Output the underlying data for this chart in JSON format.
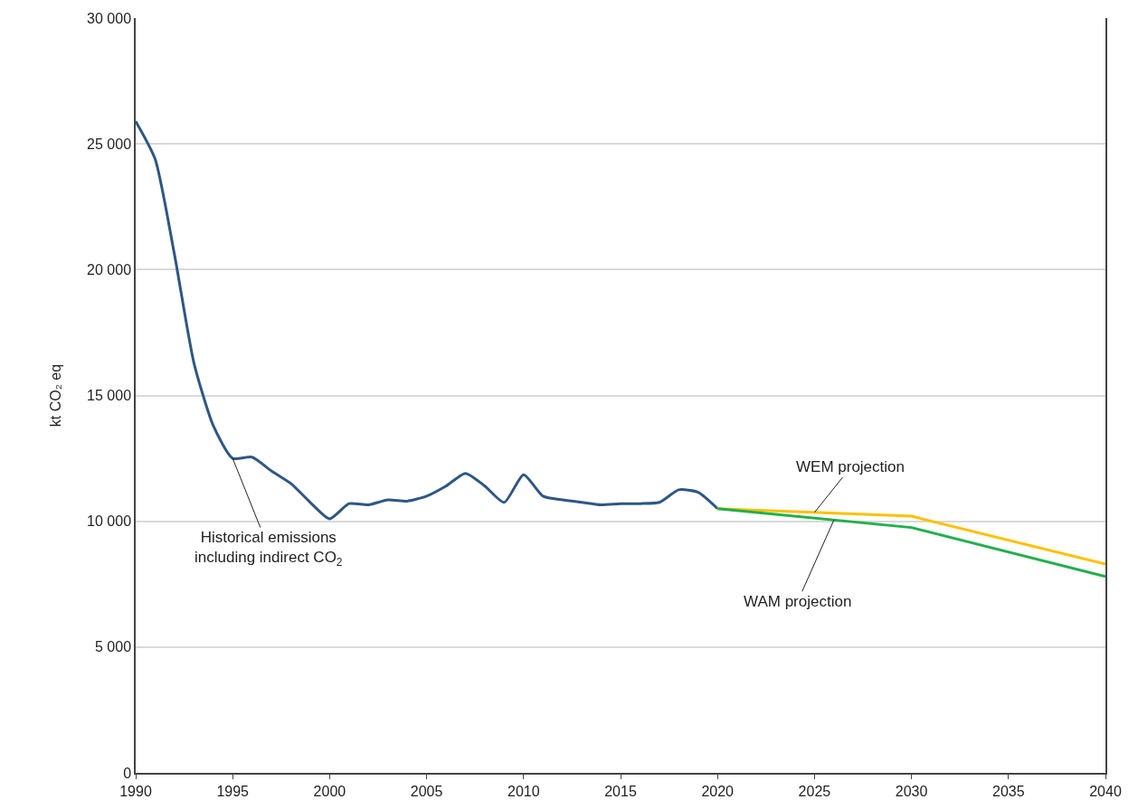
{
  "chart_data": {
    "type": "line",
    "ylabel": "kt CO₂ eq",
    "xlim": [
      1990,
      2040
    ],
    "xticks": [
      1990,
      1995,
      2000,
      2005,
      2010,
      2015,
      2020,
      2025,
      2030,
      2035,
      2040
    ],
    "ylim": [
      0,
      30000
    ],
    "yticks": [
      {
        "value": 0,
        "label": "0"
      },
      {
        "value": 5000,
        "label": "5 000"
      },
      {
        "value": 10000,
        "label": "10 000"
      },
      {
        "value": 15000,
        "label": "15 000"
      },
      {
        "value": 20000,
        "label": "20 000"
      },
      {
        "value": 25000,
        "label": "25 000"
      },
      {
        "value": 30000,
        "label": "30 000"
      }
    ],
    "grid": "y",
    "marker": "none",
    "line_style": "solid",
    "series": [
      {
        "color": "#2e5784",
        "x": [
          1990,
          1991,
          1992,
          1993,
          1994,
          1995,
          1996,
          1997,
          1998,
          1999,
          2000,
          2001,
          2002,
          2003,
          2004,
          2005,
          2006,
          2007,
          2008,
          2009,
          2010,
          2011,
          2012,
          2013,
          2014,
          2015,
          2016,
          2017,
          2018,
          2019,
          2020
        ],
        "values": [
          25900,
          24400,
          20600,
          16300,
          13800,
          12500,
          12550,
          12000,
          11500,
          10750,
          10100,
          10700,
          10650,
          10850,
          10800,
          11000,
          11400,
          11900,
          11400,
          10750,
          11850,
          11000,
          10850,
          10750,
          10650,
          10700,
          10700,
          10750,
          11250,
          11150,
          10500
        ]
      },
      {
        "color": "#ffc000",
        "x": [
          2020,
          2030,
          2040
        ],
        "values": [
          10500,
          10200,
          8300
        ]
      },
      {
        "color": "#1fb04a",
        "x": [
          2020,
          2030,
          2040
        ],
        "values": [
          10500,
          9750,
          7800
        ]
      }
    ],
    "annotations": [
      {
        "text": "Historical emissions\nincluding indirect CO$_{2}$",
        "x": 1995,
        "y": 12500
      },
      {
        "text": "WEM projection",
        "x": 2025,
        "y": 10350
      },
      {
        "text": "WAM projection",
        "x": 2026,
        "y": 10050
      }
    ]
  }
}
